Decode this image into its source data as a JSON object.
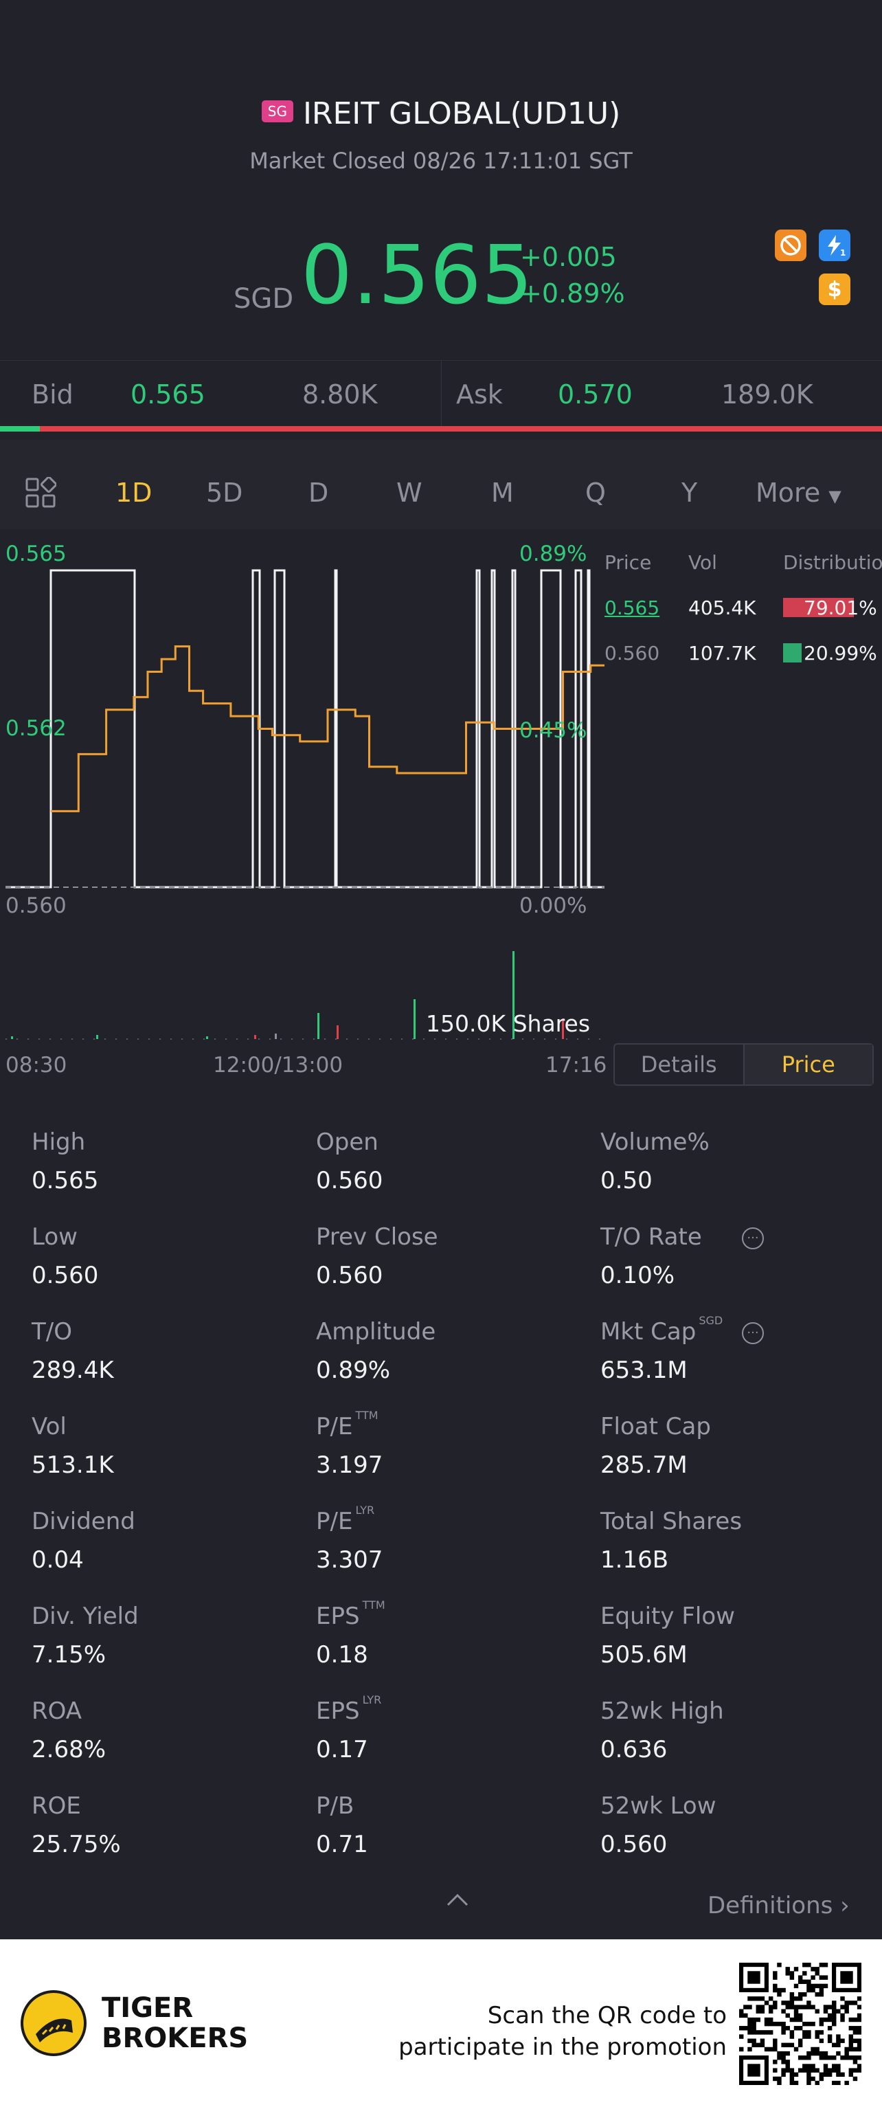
{
  "header": {
    "market_badge": "SG",
    "title": "IREIT GLOBAL(UD1U)",
    "status": "Market Closed 08/26 17:11:01 SGT"
  },
  "quote": {
    "currency": "SGD",
    "price": "0.565",
    "change": "+0.005",
    "change_pct": "+0.89%",
    "up_color": "#2ecc7a",
    "down_color": "#e0404a",
    "icons": [
      "no-short-icon",
      "lightning-badge-icon",
      "dollar-icon"
    ],
    "lightning_badge_number": "1",
    "dollar_icon_symbol": "$"
  },
  "bid_ask": {
    "bid_label": "Bid",
    "bid_price": "0.565",
    "bid_size": "8.80K",
    "ask_label": "Ask",
    "ask_price": "0.570",
    "ask_size": "189.0K",
    "bid_ratio": 0.045
  },
  "tabs": {
    "items": [
      "1D",
      "5D",
      "D",
      "W",
      "M",
      "Q",
      "Y"
    ],
    "active": "1D",
    "more_label": "More"
  },
  "chart_data": {
    "type": "line",
    "y_high": "0.565",
    "y_mid": "0.562",
    "y_low": "0.560",
    "pct_high": "0.89%",
    "pct_mid": "0.45%",
    "pct_low": "0.00%",
    "time_start": "08:30",
    "time_mid": "12:00/13:00",
    "time_end": "17:16",
    "volume_label": "150.0K Shares",
    "ylim": [
      0.56,
      0.565
    ],
    "price_series": [
      0.5612,
      0.5612,
      0.5621,
      0.5621,
      0.5628,
      0.5628,
      0.563,
      0.5634,
      0.5636,
      0.5638,
      0.5631,
      0.5629,
      0.5629,
      0.5627,
      0.5627,
      0.5625,
      0.5624,
      0.5624,
      0.5623,
      0.5623,
      0.5628,
      0.5628,
      0.5627,
      0.5619,
      0.5619,
      0.5618,
      0.5618,
      0.5618,
      0.5618,
      0.5618,
      0.5626,
      0.5626,
      0.5625,
      0.5625,
      0.5625,
      0.5625,
      0.5625,
      0.5634,
      0.5634,
      0.5635,
      0.5635
    ]
  },
  "distribution": {
    "headers": [
      "Price",
      "Vol",
      "Distribution"
    ],
    "rows": [
      {
        "price": "0.565",
        "vol": "405.4K",
        "pct": "79.01%",
        "share": 0.7901,
        "color": "#d04050"
      },
      {
        "price": "0.560",
        "vol": "107.7K",
        "pct": "20.99%",
        "share": 0.2099,
        "color": "#2eaa6e"
      }
    ]
  },
  "toggle": {
    "details": "Details",
    "price": "Price"
  },
  "stats": [
    [
      {
        "label": "High",
        "value": "0.565"
      },
      {
        "label": "Open",
        "value": "0.560"
      },
      {
        "label": "Volume%",
        "value": "0.50"
      }
    ],
    [
      {
        "label": "Low",
        "value": "0.560"
      },
      {
        "label": "Prev Close",
        "value": "0.560"
      },
      {
        "label": "T/O Rate",
        "value": "0.10%",
        "info": true
      }
    ],
    [
      {
        "label": "T/O",
        "value": "289.4K"
      },
      {
        "label": "Amplitude",
        "value": "0.89%"
      },
      {
        "label": "Mkt Cap",
        "sup": "SGD",
        "value": "653.1M",
        "info": true
      }
    ],
    [
      {
        "label": "Vol",
        "value": "513.1K"
      },
      {
        "label": "P/E",
        "sup": "TTM",
        "value": "3.197"
      },
      {
        "label": "Float Cap",
        "value": "285.7M"
      }
    ],
    [
      {
        "label": "Dividend",
        "value": "0.04"
      },
      {
        "label": "P/E",
        "sup": "LYR",
        "value": "3.307"
      },
      {
        "label": "Total Shares",
        "value": "1.16B"
      }
    ],
    [
      {
        "label": "Div. Yield",
        "value": "7.15%"
      },
      {
        "label": "EPS",
        "sup": "TTM",
        "value": "0.18"
      },
      {
        "label": "Equity Flow",
        "value": "505.6M"
      }
    ],
    [
      {
        "label": "ROA",
        "value": "2.68%"
      },
      {
        "label": "EPS",
        "sup": "LYR",
        "value": "0.17"
      },
      {
        "label": "52wk High",
        "value": "0.636"
      }
    ],
    [
      {
        "label": "ROE",
        "value": "25.75%"
      },
      {
        "label": "P/B",
        "value": "0.71"
      },
      {
        "label": "52wk Low",
        "value": "0.560"
      }
    ]
  ],
  "definitions_label": "Definitions",
  "footer": {
    "brand_line1": "TIGER",
    "brand_line2": "BROKERS",
    "scan_line1": "Scan the QR code to",
    "scan_line2": "participate in the promotion"
  }
}
